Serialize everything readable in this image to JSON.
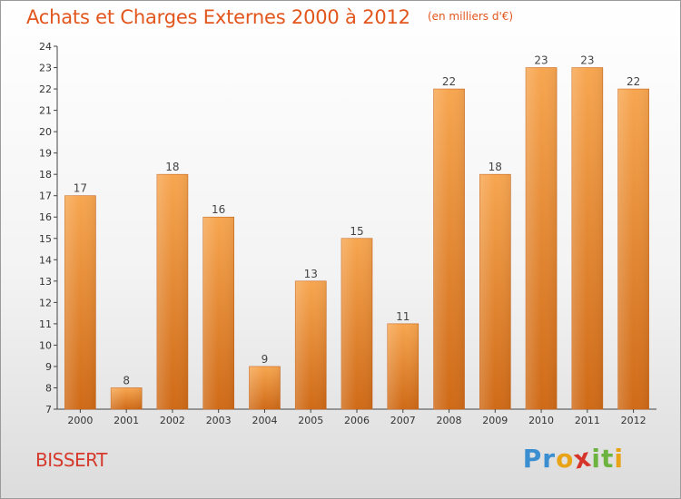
{
  "header": {
    "title": "Achats et Charges Externes 2000 à 2012",
    "unit": "(en milliers d'€)"
  },
  "footer": {
    "commune": "BISSERT",
    "brand_letters": [
      {
        "char": "P",
        "color": "#3b8fd0"
      },
      {
        "char": "r",
        "color": "#3b8fd0"
      },
      {
        "char": "o",
        "color": "#e8a317"
      },
      {
        "char": "x",
        "color": "#d6332a"
      },
      {
        "char": "i",
        "color": "#6db33f"
      },
      {
        "char": "t",
        "color": "#6db33f"
      },
      {
        "char": "i",
        "color": "#e8a317"
      }
    ]
  },
  "colors": {
    "bar_top": "#f7a650",
    "bar_bottom": "#cf6a17",
    "title": "#e2561d",
    "commune": "#d53a2c"
  },
  "chart_data": {
    "type": "bar",
    "title": "Achats et Charges Externes 2000 à 2012",
    "subtitle": "(en milliers d'€)",
    "categories": [
      "2000",
      "2001",
      "2002",
      "2003",
      "2004",
      "2005",
      "2006",
      "2007",
      "2008",
      "2009",
      "2010",
      "2011",
      "2012"
    ],
    "values": [
      17,
      8,
      18,
      16,
      9,
      13,
      15,
      11,
      22,
      18,
      23,
      23,
      22
    ],
    "ylim": [
      7,
      24
    ],
    "yticks": [
      7,
      8,
      9,
      10,
      11,
      12,
      13,
      14,
      15,
      16,
      17,
      18,
      19,
      20,
      21,
      22,
      23,
      24
    ],
    "grid": false,
    "xlabel": "",
    "ylabel": ""
  }
}
